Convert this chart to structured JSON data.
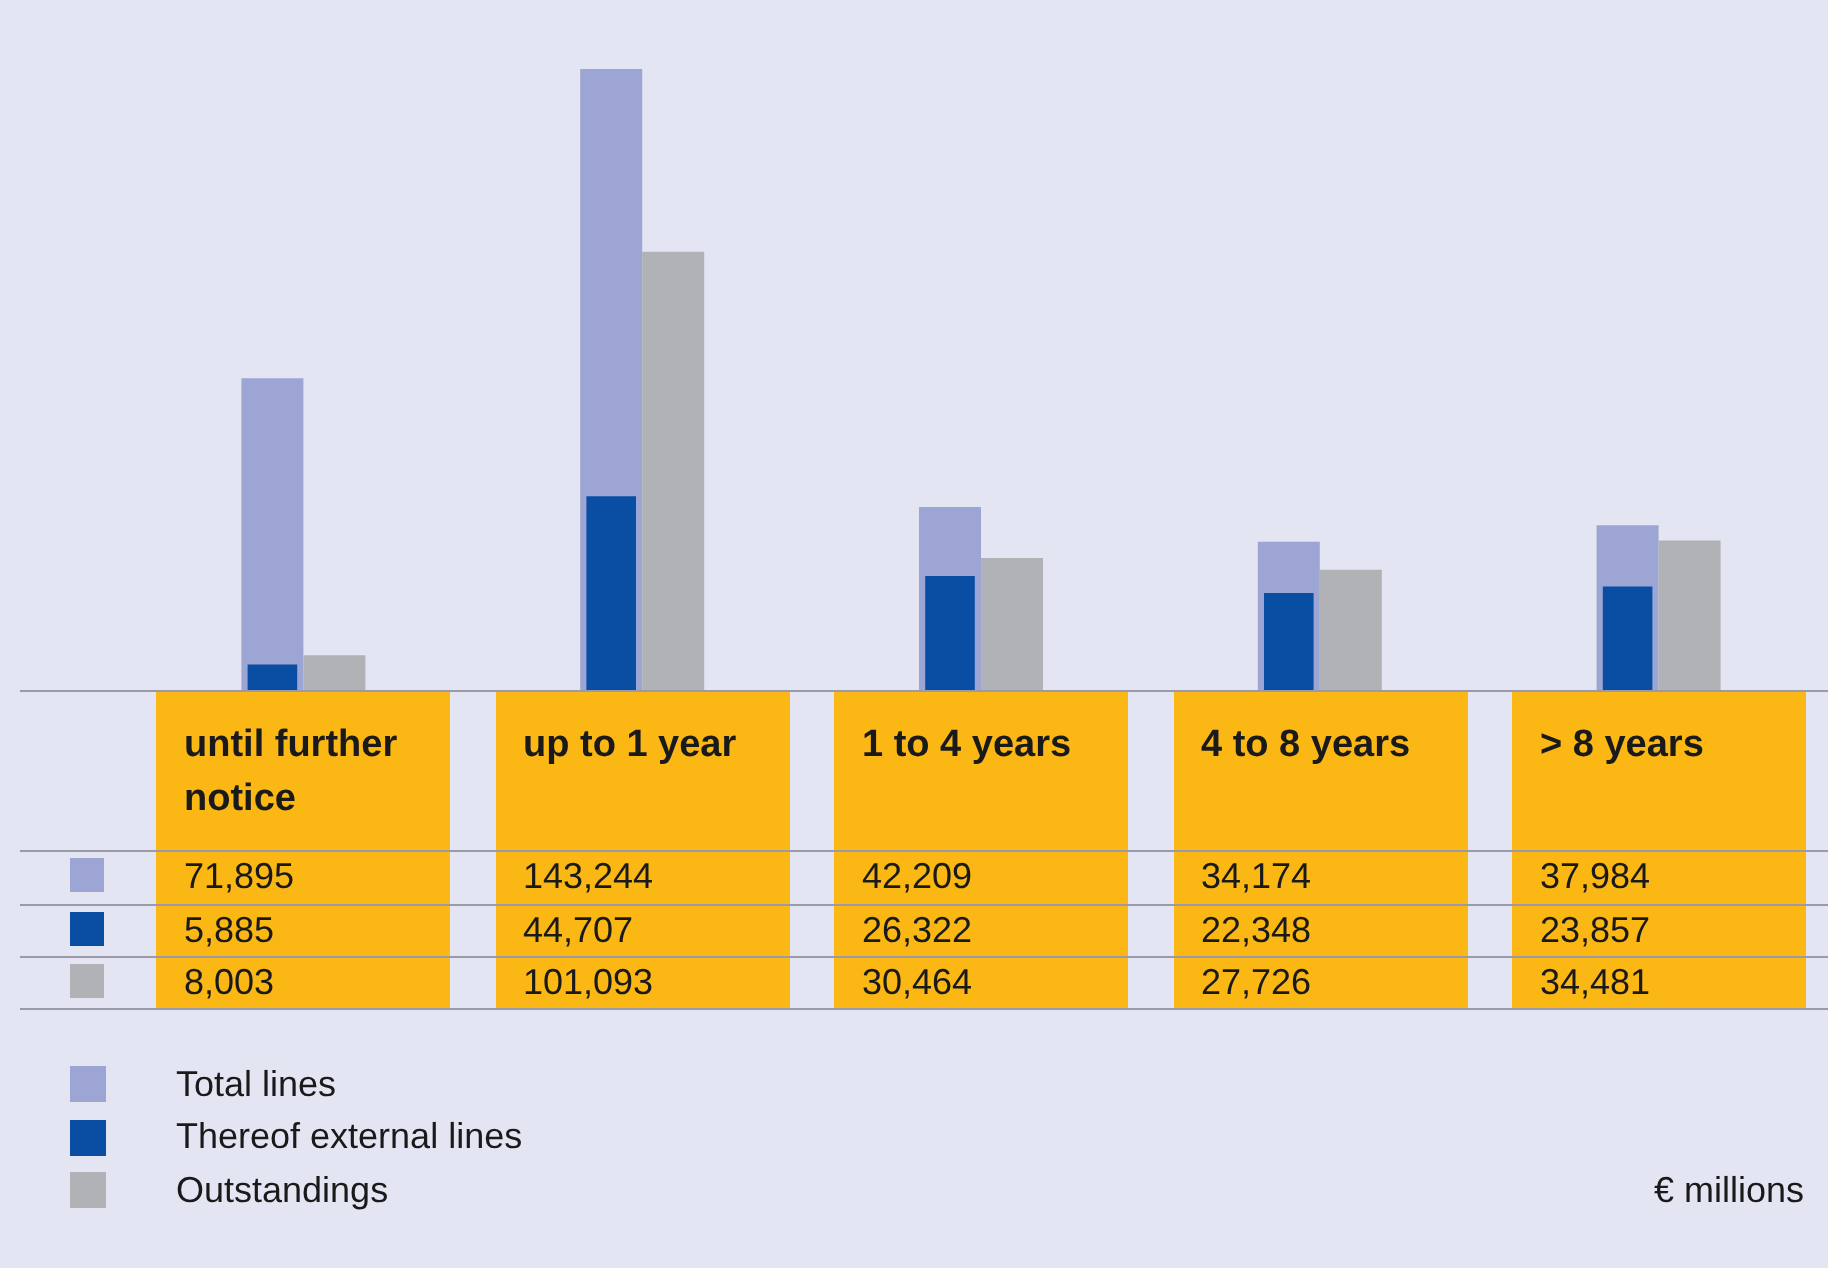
{
  "chart_data": {
    "type": "bar",
    "categories": [
      "until further notice",
      "up to 1 year",
      "1 to 4 years",
      "4 to 8 years",
      "> 8 years"
    ],
    "series": [
      {
        "name": "Total lines",
        "color": "#9ca5d4",
        "values": [
          71895,
          143244,
          42209,
          34174,
          37984
        ],
        "value_labels": [
          "71,895",
          "143,244",
          "42,209",
          "34,174",
          "37,984"
        ]
      },
      {
        "name": "Thereof external lines",
        "color": "#0a4ea3",
        "values": [
          5885,
          44707,
          26322,
          22348,
          23857
        ],
        "value_labels": [
          "5,885",
          "44,707",
          "26,322",
          "22,348",
          "23,857"
        ]
      },
      {
        "name": "Outstandings",
        "color": "#b1b2b6",
        "values": [
          8003,
          101093,
          30464,
          27726,
          34481
        ],
        "value_labels": [
          "8,003",
          "101,093",
          "30,464",
          "27,726",
          "34,481"
        ]
      }
    ],
    "legend": "bottom left",
    "annotations": [
      "€ millions"
    ]
  }
}
